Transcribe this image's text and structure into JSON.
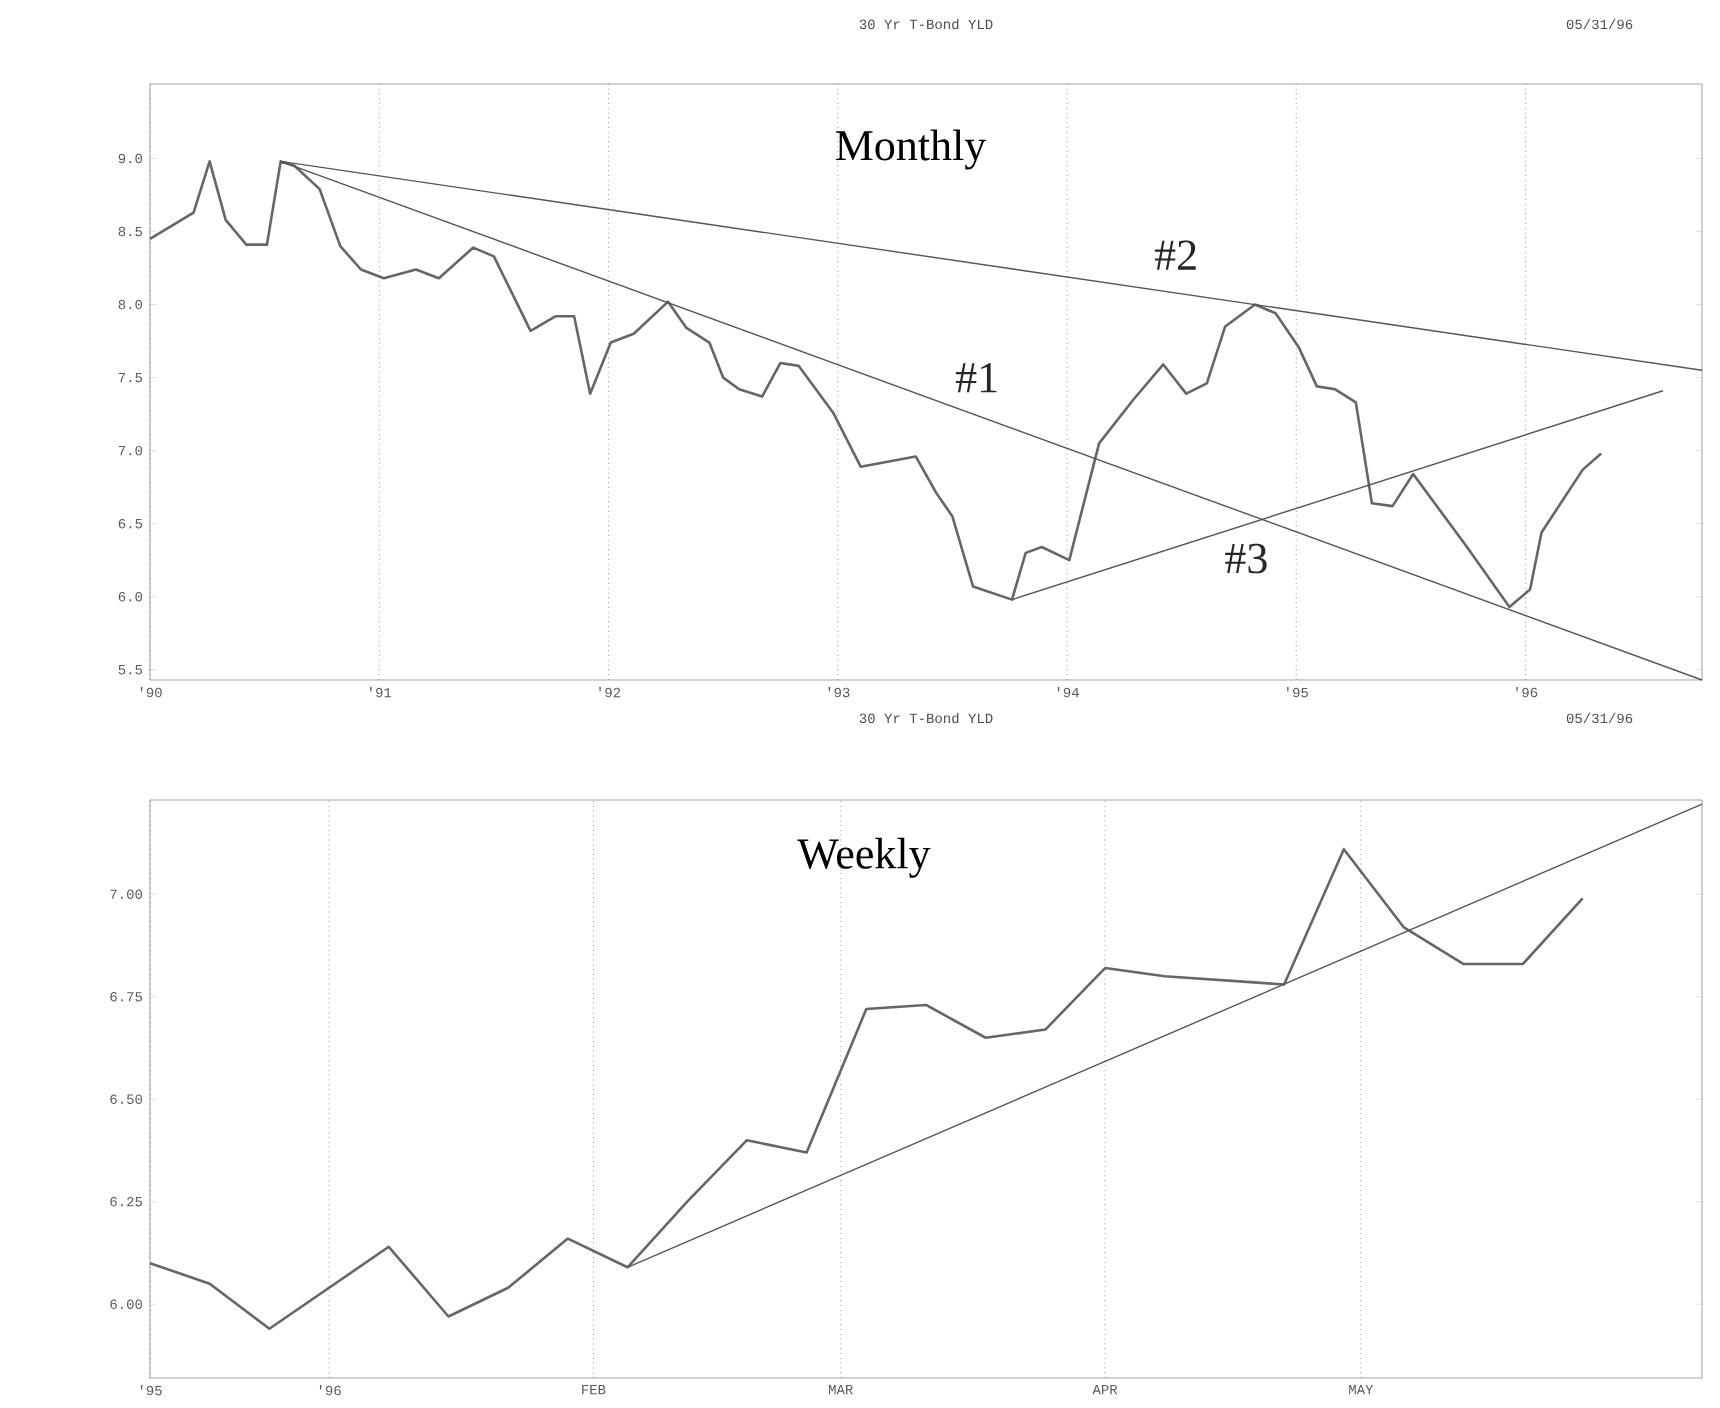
{
  "chart_data": [
    {
      "type": "line",
      "title": "30 Yr T-Bond YLD",
      "subtitle": "Monthly",
      "annotations": [
        "05/31/96"
      ],
      "xlim": [
        1990,
        1996.77
      ],
      "ylim": [
        5.43,
        9.51
      ],
      "xticks": [
        {
          "value": 1990,
          "label": "'90"
        },
        {
          "value": 1991,
          "label": "'91"
        },
        {
          "value": 1992,
          "label": "'92"
        },
        {
          "value": 1993,
          "label": "'93"
        },
        {
          "value": 1994,
          "label": "'94"
        },
        {
          "value": 1995,
          "label": "'95"
        },
        {
          "value": 1996,
          "label": "'96"
        }
      ],
      "yticks": [
        {
          "value": 5.5,
          "label": "5.5"
        },
        {
          "value": 6,
          "label": "6.0"
        },
        {
          "value": 6.5,
          "label": "6.5"
        },
        {
          "value": 7,
          "label": "7.0"
        },
        {
          "value": 7.5,
          "label": "7.5"
        },
        {
          "value": 8,
          "label": "8.0"
        },
        {
          "value": 8.5,
          "label": "8.5"
        },
        {
          "value": 9,
          "label": "9.0"
        }
      ],
      "grid": "x",
      "series": [
        {
          "color": "#666666",
          "x": [
            1990.0,
            1990.19,
            1990.26,
            1990.33,
            1990.42,
            1990.51,
            1990.57,
            1990.63,
            1990.74,
            1990.83,
            1990.92,
            1991.02,
            1991.16,
            1991.26,
            1991.41,
            1991.5,
            1991.66,
            1991.77,
            1991.85,
            1991.92,
            1992.01,
            1992.11,
            1992.26,
            1992.34,
            1992.44,
            1992.5,
            1992.57,
            1992.67,
            1992.75,
            1992.83,
            1992.98,
            1993.1,
            1993.34,
            1993.43,
            1993.5,
            1993.59,
            1993.76,
            1993.82,
            1993.89,
            1994.01,
            1994.14,
            1994.29,
            1994.42,
            1994.52,
            1994.61,
            1994.69,
            1994.82,
            1994.91,
            1995.01,
            1995.09,
            1995.17,
            1995.26,
            1995.33,
            1995.42,
            1995.51,
            1995.74,
            1995.93,
            1996.02,
            1996.07,
            1996.25,
            1996.33
          ],
          "values": [
            8.45,
            8.63,
            8.98,
            8.58,
            8.41,
            8.41,
            8.98,
            8.95,
            8.79,
            8.4,
            8.24,
            8.18,
            8.24,
            8.18,
            8.39,
            8.33,
            7.82,
            7.92,
            7.92,
            7.39,
            7.74,
            7.8,
            8.02,
            7.84,
            7.74,
            7.5,
            7.42,
            7.37,
            7.6,
            7.58,
            7.26,
            6.89,
            6.96,
            6.71,
            6.55,
            6.07,
            5.98,
            6.3,
            6.34,
            6.25,
            7.05,
            7.35,
            7.59,
            7.39,
            7.46,
            7.85,
            8.0,
            7.94,
            7.71,
            7.44,
            7.42,
            7.33,
            6.64,
            6.62,
            6.84,
            6.35,
            5.93,
            6.05,
            6.44,
            6.87,
            6.98
          ]
        },
        {
          "name": "#1",
          "color": "#555555",
          "x": [
            1990.57,
            1996.77
          ],
          "values": [
            8.98,
            5.43
          ]
        },
        {
          "name": "#2",
          "color": "#555555",
          "x": [
            1990.57,
            1996.77
          ],
          "values": [
            8.98,
            7.55
          ]
        },
        {
          "name": "#3",
          "color": "#555555",
          "x": [
            1993.76,
            1996.6
          ],
          "values": [
            5.98,
            7.41
          ]
        }
      ]
    },
    {
      "type": "line",
      "title": "30 Yr T-Bond YLD",
      "subtitle": "Weekly",
      "annotations": [
        "05/31/96"
      ],
      "xlim": [
        "1995-12-11",
        "1996-06-10"
      ],
      "ylim": [
        5.82,
        7.23
      ],
      "xticks": [
        {
          "value": "1995-12-11",
          "label": "'95"
        },
        {
          "value": "1996-01-01",
          "label": "'96"
        },
        {
          "value": "1996-02-01",
          "label": "FEB"
        },
        {
          "value": "1996-03-01",
          "label": "MAR"
        },
        {
          "value": "1996-04-01",
          "label": "APR"
        },
        {
          "value": "1996-05-01",
          "label": "MAY"
        }
      ],
      "yticks": [
        {
          "value": 6,
          "label": "6.00"
        },
        {
          "value": 6.25,
          "label": "6.25"
        },
        {
          "value": 6.5,
          "label": "6.50"
        },
        {
          "value": 6.75,
          "label": "6.75"
        },
        {
          "value": 7,
          "label": "7.00"
        }
      ],
      "grid": "x",
      "series": [
        {
          "color": "#666666",
          "x": [
            "1995-12-11",
            "1995-12-18",
            "1995-12-25",
            "1996-01-01",
            "1996-01-08",
            "1996-01-15",
            "1996-01-22",
            "1996-01-29",
            "1996-02-05",
            "1996-02-12",
            "1996-02-19",
            "1996-02-26",
            "1996-03-04",
            "1996-03-11",
            "1996-03-18",
            "1996-03-25",
            "1996-04-01",
            "1996-04-08",
            "1996-04-15",
            "1996-04-22",
            "1996-04-29",
            "1996-05-06",
            "1996-05-13",
            "1996-05-20",
            "1996-05-27"
          ],
          "values": [
            6.1,
            6.05,
            5.94,
            6.04,
            6.14,
            5.97,
            6.04,
            6.16,
            6.09,
            6.25,
            6.4,
            6.37,
            6.72,
            6.73,
            6.65,
            6.67,
            6.82,
            6.8,
            6.79,
            6.78,
            7.11,
            6.92,
            6.83,
            6.83,
            6.99
          ]
        },
        {
          "color": "#555555",
          "x": [
            "1996-02-05",
            "1996-06-10"
          ],
          "values": [
            6.09,
            7.22
          ]
        }
      ]
    }
  ]
}
